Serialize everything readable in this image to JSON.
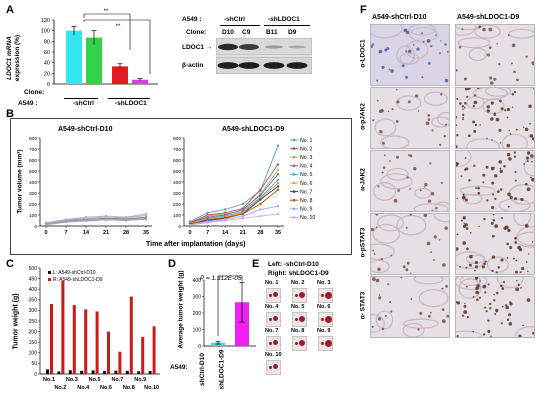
{
  "panelA": {
    "label": "A",
    "ylabel_1": "LDOC1 mRNA",
    "ylabel_2": "expression (%)",
    "yticks": [
      "0",
      "20",
      "40",
      "60",
      "80",
      "100",
      "120"
    ],
    "sig1": "**",
    "sig2": "**",
    "clone_label": "Clone:",
    "a549_label": "A549 :",
    "group_ctrl": "-shCtrl",
    "group_ldoc": "-shLDOC1",
    "blot": {
      "a549_label": "A549 :",
      "clone_label": "Clone:",
      "group_ctrl": "-shCtrl",
      "group_ldoc": "-shLDOC1",
      "clones": [
        "D10",
        "C9",
        "B11",
        "D9"
      ],
      "row1": "LDOC1",
      "row1_arrow": "→",
      "row2": "β-actin"
    }
  },
  "chartA": {
    "type": "bar",
    "categories": [
      "D10",
      "C9",
      "B11",
      "D9"
    ],
    "values": [
      100,
      87,
      33,
      8
    ],
    "errors": [
      8,
      13,
      5,
      2
    ],
    "ylim": [
      0,
      120
    ],
    "colors": [
      "#33e6ee",
      "#33d24a",
      "#e01b22",
      "#e637e6"
    ]
  },
  "panelB": {
    "label": "B",
    "title_left": "A549-shCtrl-D10",
    "title_right": "A549-shLDOC1-D9",
    "ylabel": "Tumor volume (mm³)",
    "xlabel": "Time after implantation (days)",
    "yticks": [
      "0",
      "100",
      "200",
      "300",
      "400",
      "500",
      "600",
      "700",
      "800"
    ],
    "xticks": [
      "0",
      "7",
      "14",
      "21",
      "28",
      "35"
    ]
  },
  "chartB": {
    "type": "line",
    "x": [
      0,
      7,
      14,
      21,
      28,
      35
    ],
    "ylim": [
      0,
      800
    ],
    "left_series": [
      {
        "values": [
          20,
          50,
          60,
          70,
          65,
          80
        ],
        "color": "#7f7f7f"
      },
      {
        "values": [
          25,
          55,
          70,
          80,
          75,
          95
        ],
        "color": "#c8a0c8"
      },
      {
        "values": [
          15,
          45,
          55,
          60,
          55,
          70
        ],
        "color": "#9aa7d6"
      },
      {
        "values": [
          30,
          60,
          80,
          90,
          80,
          110
        ],
        "color": "#b0b0b0"
      },
      {
        "values": [
          20,
          40,
          50,
          55,
          60,
          65
        ],
        "color": "#8ca0c0"
      },
      {
        "values": [
          10,
          35,
          45,
          55,
          50,
          60
        ],
        "color": "#aaaaaa"
      }
    ],
    "right_series": [
      {
        "name": "No. 1",
        "values": [
          40,
          120,
          150,
          200,
          320,
          730
        ],
        "color": "#5b9bd5"
      },
      {
        "name": "No. 2",
        "values": [
          30,
          100,
          120,
          160,
          330,
          560
        ],
        "color": "#c0504d"
      },
      {
        "name": "No. 3",
        "values": [
          25,
          90,
          110,
          140,
          290,
          510
        ],
        "color": "#9bbb59"
      },
      {
        "name": "No. 4",
        "values": [
          30,
          80,
          100,
          150,
          280,
          470
        ],
        "color": "#8064a2"
      },
      {
        "name": "No. 5",
        "values": [
          20,
          70,
          90,
          130,
          260,
          420
        ],
        "color": "#4bacc6"
      },
      {
        "name": "No. 6",
        "values": [
          25,
          60,
          80,
          120,
          250,
          390
        ],
        "color": "#f79646"
      },
      {
        "name": "No. 7",
        "values": [
          20,
          50,
          70,
          110,
          240,
          360
        ],
        "color": "#2c4d75"
      },
      {
        "name": "No. 8",
        "values": [
          15,
          60,
          75,
          110,
          200,
          330
        ],
        "color": "#b65708"
      },
      {
        "name": "No. 9",
        "values": [
          10,
          40,
          60,
          90,
          150,
          180
        ],
        "color": "#a5a5ff"
      },
      {
        "name": "No. 10",
        "values": [
          10,
          30,
          50,
          70,
          90,
          110
        ],
        "color": "#d9a7d9"
      }
    ]
  },
  "panelC": {
    "label": "C",
    "ylabel": "Tumor weight (g)",
    "yticks": [
      "0",
      "50",
      "100",
      "150",
      "200",
      "250",
      "300",
      "350",
      "400",
      "450",
      "500"
    ],
    "legend_L": "L: A549-shCtrl-D10",
    "legend_R": "R: A549-shLDOC1-D9",
    "xticks_top": [
      "No.1",
      "No.3",
      "No.5",
      "No.7",
      "No.9"
    ],
    "xticks_bottom": [
      "No.2",
      "No.4",
      "No.6",
      "No.8",
      "No.10"
    ]
  },
  "chartC": {
    "type": "bar",
    "categories": [
      "No.1",
      "No.2",
      "No.3",
      "No.4",
      "No.5",
      "No.6",
      "No.7",
      "No.8",
      "No.9",
      "No.10"
    ],
    "series": [
      {
        "values": [
          22,
          12,
          18,
          15,
          17,
          14,
          16,
          15,
          13,
          14
        ],
        "color": "#111111"
      },
      {
        "values": [
          330,
          440,
          325,
          305,
          295,
          200,
          105,
          365,
          175,
          225
        ],
        "color": "#d01818"
      }
    ],
    "ylim": [
      0,
      500
    ]
  },
  "panelD": {
    "label": "D",
    "ylabel": "Average tumor weight (g)",
    "pvalue": "P = 1.312E-05",
    "yticks": [
      "0",
      "100",
      "200",
      "300",
      "400"
    ],
    "a549_label": "A549:",
    "cat_ctrl": "shCtrl-D10",
    "cat_ldoc": "shLDOC1-D9"
  },
  "chartD": {
    "type": "bar",
    "categories": [
      "shCtrl-D10",
      "shLDOC1-D9"
    ],
    "values": [
      20,
      265
    ],
    "errors": [
      8,
      120
    ],
    "ylim": [
      0,
      400
    ],
    "colors": [
      "#33e0d8",
      "#f020f0"
    ]
  },
  "panelE": {
    "label": "E",
    "left_text": "Left: -shCtrl-D10",
    "right_text": "Right: shLDOC1-D9",
    "tumors": [
      "No. 1",
      "No. 2",
      "No. 3",
      "No. 4",
      "No. 5",
      "No. 6",
      "No. 7",
      "No. 8",
      "No. 9",
      "No. 10"
    ]
  },
  "panelF": {
    "label": "F",
    "col1": "A549-shCtrl-D10",
    "col2": "A549-shLDOC1-D9",
    "rows": [
      "α-LDOC1",
      "α-pJAK2",
      "α-JAK2",
      "α-pSTAT3",
      "α- STAT3"
    ]
  }
}
